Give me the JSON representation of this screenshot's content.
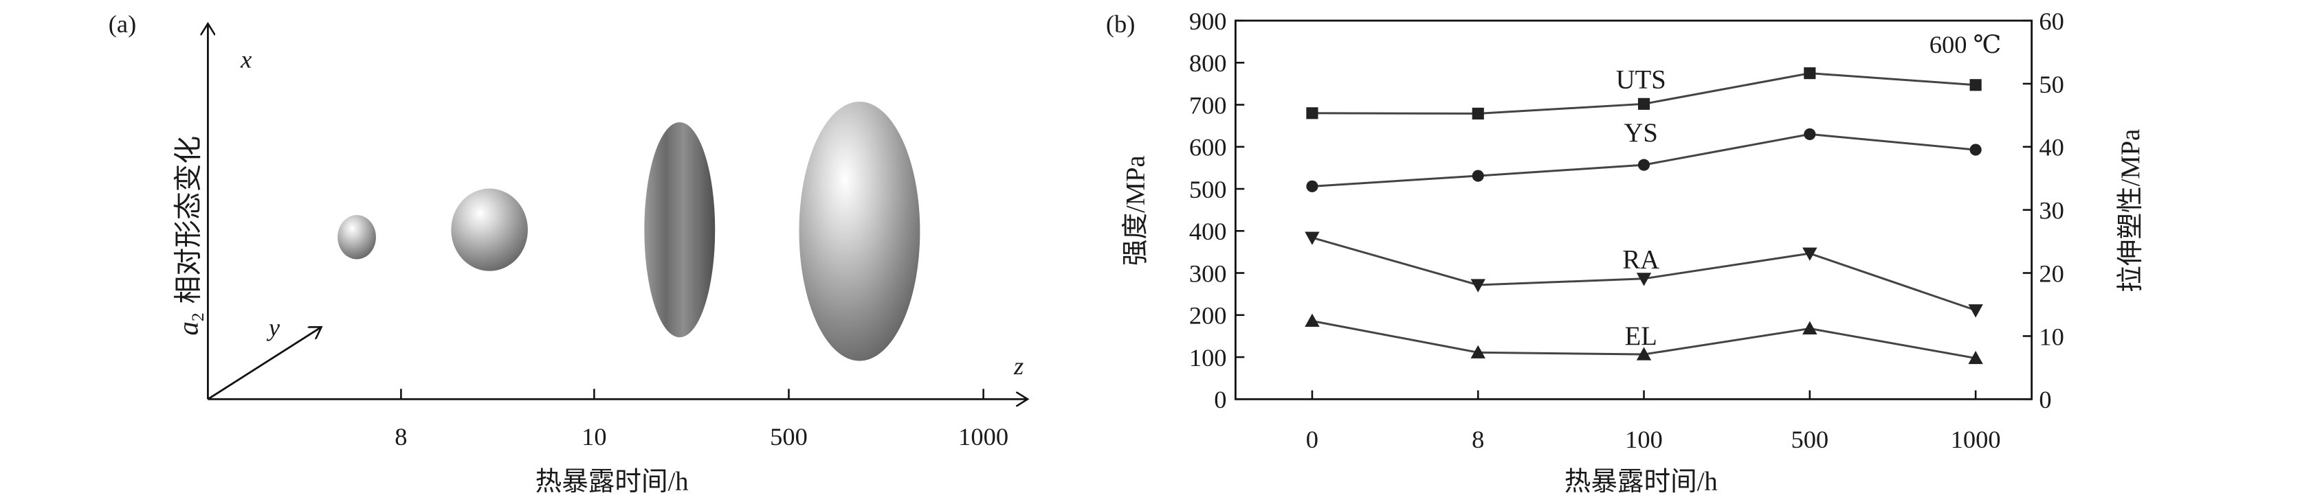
{
  "panel_a": {
    "label": "(a)",
    "ylabel_symbol": "a",
    "ylabel_subscript": "2",
    "ylabel": "相对形态变化",
    "axis_x": "x",
    "axis_y": "y",
    "axis_z": "z",
    "ticks": [
      "8",
      "10",
      "500",
      "1000"
    ],
    "xlabel": "热暴露时间/h"
  },
  "chart_data": {
    "type": "line",
    "panel_label": "(b)",
    "annotation": "600 ℃",
    "categories": [
      "0",
      "8",
      "100",
      "500",
      "1000"
    ],
    "xlabel": "热暴露时间/h",
    "ylabel": "强度/MPa",
    "ylabel_right": "拉伸塑性/MPa",
    "ylim": [
      0,
      900
    ],
    "ylim_right": [
      0,
      60
    ],
    "yticks": [
      "0",
      "100",
      "200",
      "300",
      "400",
      "500",
      "600",
      "700",
      "800",
      "900"
    ],
    "yticks_right": [
      "0",
      "10",
      "20",
      "30",
      "40",
      "50",
      "60"
    ],
    "grid": false,
    "legend": "inline labels",
    "series": [
      {
        "name": "UTS",
        "axis": "left",
        "marker": "square",
        "values": [
          680,
          679,
          702,
          775,
          747
        ]
      },
      {
        "name": "YS",
        "axis": "left",
        "marker": "circle",
        "values": [
          506,
          531,
          557,
          630,
          593
        ]
      },
      {
        "name": "RA",
        "axis": "right",
        "marker": "triangle-down",
        "values": [
          25.6,
          18.1,
          19.1,
          23.1,
          14.1
        ]
      },
      {
        "name": "EL",
        "axis": "right",
        "marker": "triangle-up",
        "values": [
          12.4,
          7.4,
          7.1,
          11.2,
          6.5
        ]
      }
    ]
  }
}
